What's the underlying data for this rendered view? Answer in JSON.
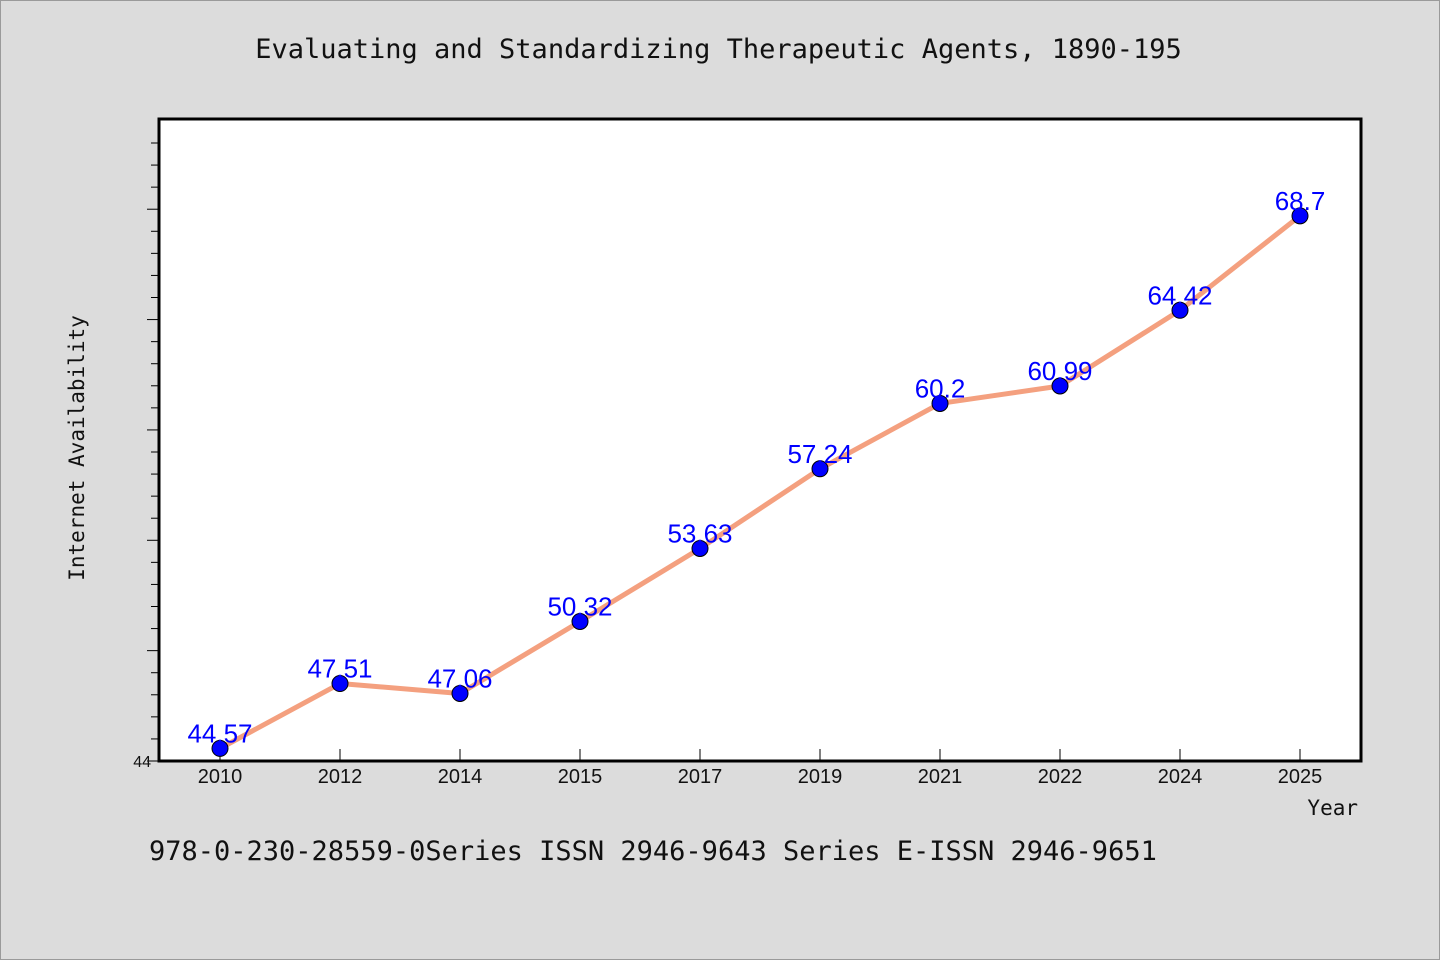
{
  "chart_data": {
    "type": "line",
    "title": "Evaluating and Standardizing Therapeutic Agents, 1890-195",
    "xlabel": "Year",
    "ylabel": "Internet Availability",
    "categories": [
      "2010",
      "2012",
      "2014",
      "2015",
      "2017",
      "2019",
      "2021",
      "2022",
      "2024",
      "2025"
    ],
    "series": [
      {
        "values": [
          44.57,
          47.51,
          47.06,
          50.32,
          53.63,
          57.24,
          60.2,
          60.99,
          64.42,
          68.7
        ],
        "data_labels": [
          "44.57",
          "47.51",
          "47.06",
          "50.32",
          "53.63",
          "57.24",
          "60.2",
          "60.99",
          "64.42",
          "68.7"
        ]
      }
    ],
    "ylim": [
      44,
      72
    ],
    "y_tick_labels": [
      "44"
    ],
    "grid": false,
    "line_color": "#f4a07f",
    "marker_color": "#0000ff",
    "label_color": "#0000ff"
  },
  "footer": {
    "caption": "978-0-230-28559-0Series ISSN 2946-9643 Series E-ISSN 2946-9651"
  },
  "colors": {
    "background": "#dcdcdc",
    "plot_background": "#ffffff"
  }
}
